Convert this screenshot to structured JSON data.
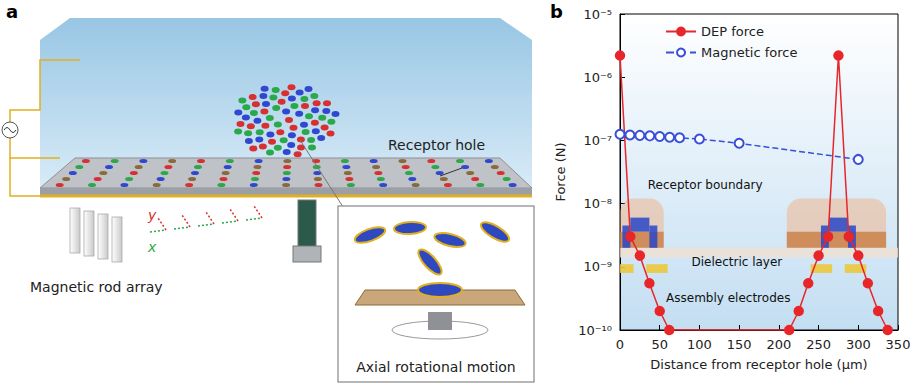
{
  "panels": {
    "a": {
      "letter": "a",
      "labels": {
        "receptor_hole": "Receptor hole",
        "rod_array": "Magnetic rod array",
        "inset": "Axial rotational motion",
        "axis_x": "x",
        "axis_y": "y"
      }
    }
  },
  "chart_data": {
    "letter": "b",
    "type": "line",
    "x_label": "Distance from receptor hole (μm)",
    "y_label": "Force (N)",
    "log": "y",
    "grid": false,
    "legend": "upper left",
    "xlim": [
      0,
      350
    ],
    "xticks": [
      0,
      50,
      100,
      150,
      200,
      250,
      300,
      350
    ],
    "ylim": [
      1e-10,
      1e-05
    ],
    "yticks": [
      {
        "value": 1e-10,
        "label": "10⁻¹⁰"
      },
      {
        "value": 1e-09,
        "label": "10⁻⁹"
      },
      {
        "value": 1e-08,
        "label": "10⁻⁸"
      },
      {
        "value": 1e-07,
        "label": "10⁻⁷"
      },
      {
        "value": 1e-06,
        "label": "10⁻⁶"
      },
      {
        "value": 1e-05,
        "label": "10⁻⁵"
      }
    ],
    "annotations": [
      "Receptor boundary",
      "Dielectric layer",
      "Assembly electrodes"
    ],
    "series": [
      {
        "name": "DEP force",
        "color": "#e8262a",
        "marker": "circle",
        "line_style": "solid",
        "x": [
          0,
          13,
          25,
          37,
          50,
          62,
          213,
          225,
          237,
          250,
          262,
          275,
          288,
          300,
          312,
          325,
          337
        ],
        "values": [
          2.2e-06,
          3e-09,
          1.5e-09,
          5.5e-10,
          2e-10,
          1e-10,
          1e-10,
          2e-10,
          5.5e-10,
          1.5e-09,
          3e-09,
          2.2e-06,
          3e-09,
          1.5e-09,
          5.5e-10,
          2e-10,
          1e-10
        ]
      },
      {
        "name": "Magnetic force",
        "color": "#3a4fd8",
        "marker": "open circle",
        "line_style": "dashed",
        "x": [
          0,
          12.5,
          25,
          37.5,
          50,
          62.5,
          75,
          100,
          150,
          300
        ],
        "values": [
          1.25e-07,
          1.22e-07,
          1.2e-07,
          1.18e-07,
          1.15e-07,
          1.12e-07,
          1.1e-07,
          1.05e-07,
          9e-08,
          5e-08
        ]
      }
    ]
  }
}
